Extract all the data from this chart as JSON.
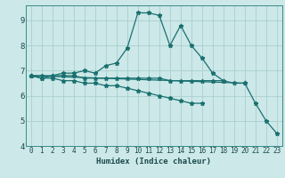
{
  "title": "",
  "xlabel": "Humidex (Indice chaleur)",
  "bg_color": "#cce8e8",
  "grid_color": "#aacece",
  "line_color": "#1a7070",
  "x_values": [
    0,
    1,
    2,
    3,
    4,
    5,
    6,
    7,
    8,
    9,
    10,
    11,
    12,
    13,
    14,
    15,
    16,
    17,
    18,
    19,
    20,
    21,
    22,
    23
  ],
  "series1": [
    6.8,
    6.7,
    6.8,
    6.9,
    6.9,
    7.0,
    6.9,
    7.2,
    7.3,
    7.9,
    9.3,
    9.3,
    9.2,
    8.0,
    8.8,
    8.0,
    7.5,
    6.9,
    6.6,
    null,
    null,
    null,
    null,
    null
  ],
  "series2": [
    6.8,
    6.8,
    6.8,
    6.8,
    6.8,
    6.7,
    6.7,
    6.7,
    6.7,
    6.7,
    6.7,
    6.7,
    6.7,
    6.6,
    6.6,
    6.6,
    6.6,
    6.6,
    6.6,
    6.5,
    6.5,
    null,
    null,
    null
  ],
  "series3": [
    6.8,
    6.7,
    6.7,
    6.6,
    6.6,
    6.5,
    6.5,
    6.4,
    6.4,
    6.3,
    6.2,
    6.1,
    6.0,
    5.9,
    5.8,
    5.7,
    5.7,
    null,
    null,
    null,
    null,
    null,
    null,
    null
  ],
  "series4": [
    6.8,
    null,
    null,
    null,
    null,
    null,
    null,
    null,
    null,
    null,
    null,
    null,
    null,
    null,
    null,
    null,
    null,
    null,
    null,
    null,
    6.5,
    5.7,
    5.0,
    4.5
  ],
  "xlim": [
    -0.5,
    23.5
  ],
  "ylim": [
    4.0,
    9.6
  ],
  "yticks": [
    4,
    5,
    6,
    7,
    8,
    9
  ],
  "xticks": [
    0,
    1,
    2,
    3,
    4,
    5,
    6,
    7,
    8,
    9,
    10,
    11,
    12,
    13,
    14,
    15,
    16,
    17,
    18,
    19,
    20,
    21,
    22,
    23
  ]
}
